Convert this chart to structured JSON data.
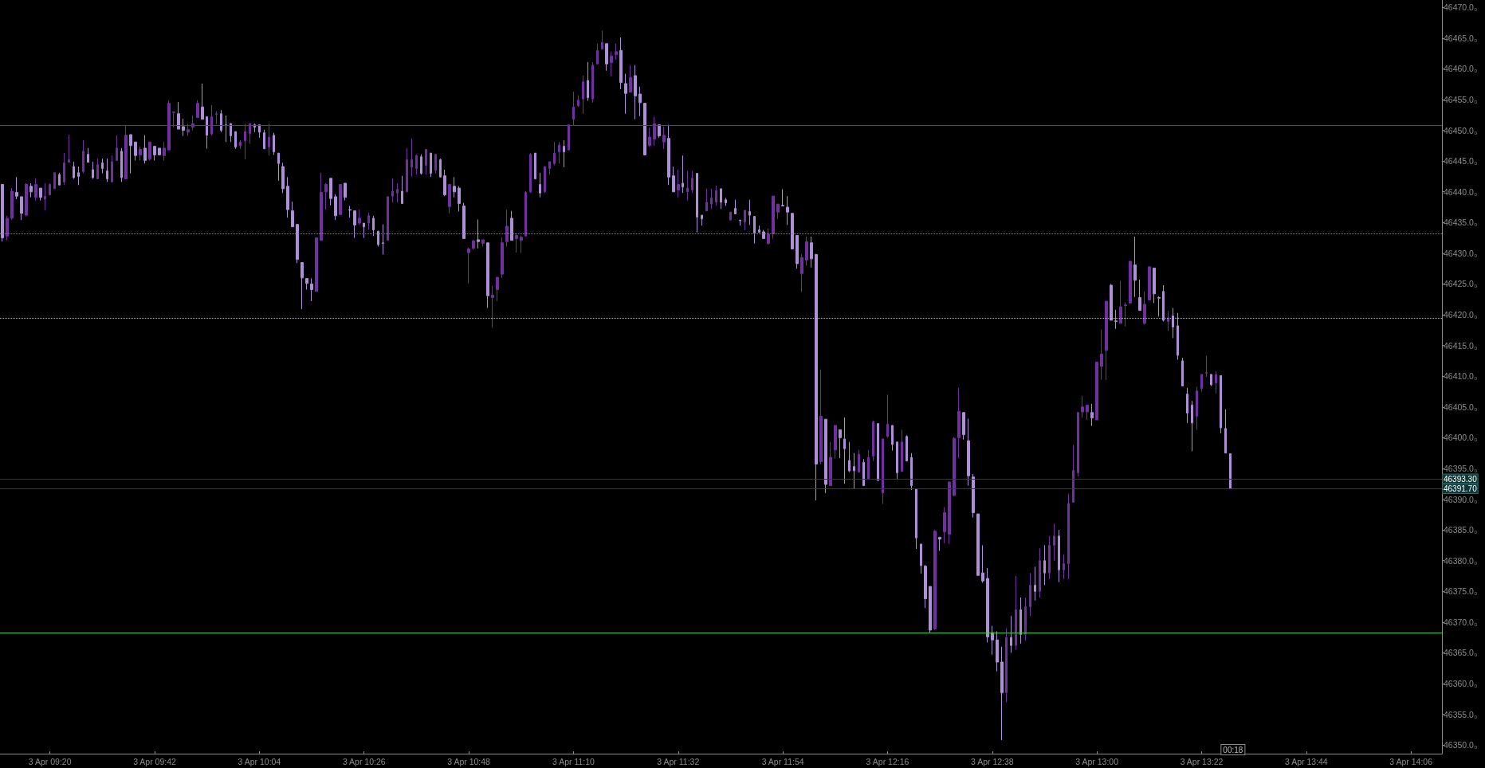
{
  "chart_data": {
    "type": "candlestick",
    "categories": [
      null,
      null,
      null,
      null,
      null,
      null,
      null,
      null,
      null,
      null,
      "3 Apr 09:20",
      null,
      null,
      null,
      null,
      null,
      null,
      null,
      null,
      null,
      null,
      null,
      null,
      null,
      null,
      null,
      null,
      null,
      null,
      null,
      null,
      null,
      "3 Apr 09:42",
      null,
      null,
      null,
      null,
      null,
      null,
      null,
      null,
      null,
      null,
      null,
      null,
      null,
      null,
      null,
      null,
      null,
      null,
      null,
      null,
      null,
      "3 Apr 10:04",
      null,
      null,
      null,
      null,
      null,
      null,
      null,
      null,
      null,
      null,
      null,
      null,
      null,
      null,
      null,
      null,
      null,
      null,
      null,
      null,
      null,
      "3 Apr 10:26",
      null,
      null,
      null,
      null,
      null,
      null,
      null,
      null,
      null,
      null,
      null,
      null,
      null,
      null,
      null,
      null,
      null,
      null,
      null,
      null,
      null,
      "3 Apr 10:48",
      null,
      null,
      null,
      null,
      null,
      null,
      null,
      null,
      null,
      null,
      null,
      null,
      null,
      null,
      null,
      null,
      null,
      null,
      null,
      null,
      null,
      "3 Apr 11:10",
      null,
      null,
      null,
      null,
      null,
      null,
      null,
      null,
      null,
      null,
      null,
      null,
      null,
      null,
      null,
      null,
      null,
      null,
      null,
      null,
      null,
      "3 Apr 11:32",
      null,
      null,
      null,
      null,
      null,
      null,
      null,
      null,
      null,
      null,
      null,
      null,
      null,
      null,
      null,
      null,
      null,
      null,
      null,
      null,
      null,
      "3 Apr 11:54",
      null,
      null,
      null,
      null,
      null,
      null,
      null,
      null,
      null,
      null,
      null,
      null,
      null,
      null,
      null,
      null,
      null,
      null,
      null,
      null,
      null,
      "3 Apr 12:16",
      null,
      null,
      null,
      null,
      null,
      null,
      null,
      null,
      null,
      null,
      null,
      null,
      null,
      null,
      null,
      null,
      null,
      null,
      null,
      null,
      null,
      "3 Apr 12:38",
      null,
      null,
      null,
      null,
      null,
      null,
      null,
      null,
      null,
      null,
      null,
      null,
      null,
      null,
      null,
      null,
      null,
      null,
      null,
      null,
      null,
      "3 Apr 13:00",
      null,
      null,
      null,
      null,
      null,
      null,
      null,
      null,
      null,
      null,
      null,
      null,
      null,
      null,
      null,
      null,
      null,
      null,
      null,
      null,
      null,
      "3 Apr 13:22",
      null,
      null,
      null,
      null,
      null,
      null,
      null,
      null,
      null,
      null,
      null,
      null,
      null,
      null,
      null,
      null,
      null,
      null,
      null,
      null,
      null,
      "3 Apr 13:44",
      null,
      null,
      null,
      null,
      null,
      null,
      null,
      null,
      null,
      null,
      null,
      null,
      null,
      null,
      null,
      null,
      null,
      null,
      null,
      null,
      null,
      "3 Apr 14:06",
      null,
      null,
      null,
      null,
      null,
      null
    ],
    "ohlc": [
      [
        46441.2,
        46441.2,
        46431.9,
        46432.5
      ],
      [
        46432.8,
        46436.1,
        46432.1,
        46435.7
      ],
      [
        46435.7,
        46440.6,
        46435.4,
        46440.1
      ],
      [
        46439.9,
        46442.4,
        46438.8,
        46439.3
      ],
      [
        46439.2,
        46439.2,
        46435.4,
        46436.5
      ],
      [
        46436.2,
        46441.4,
        46436.0,
        46441.2
      ],
      [
        46440.9,
        46441.4,
        46439.1,
        46440.0
      ],
      [
        46439.1,
        46442.2,
        46438.6,
        46441.2
      ],
      [
        46440.6,
        46440.6,
        46438.6,
        46439.1
      ],
      [
        46438.8,
        46441.4,
        46437.0,
        46439.3
      ],
      [
        46439.5,
        46441.4,
        46439.5,
        46441.2
      ],
      [
        46440.5,
        46443.1,
        46440.5,
        46443.1
      ],
      [
        46442.8,
        46443.1,
        46441.1,
        46441.1
      ],
      [
        46441.6,
        46446.3,
        46441.1,
        46444.7
      ],
      [
        46444.8,
        46449.3,
        46444.8,
        46445.2
      ],
      [
        46444.1,
        46444.9,
        46442.1,
        46442.3
      ],
      [
        46443.1,
        46444.1,
        46441.1,
        46442.5
      ],
      [
        46443.3,
        46448.4,
        46443.0,
        46446.6
      ],
      [
        46446.1,
        46447.1,
        46444.8,
        46444.8
      ],
      [
        46443.6,
        46444.9,
        46442.1,
        46442.3
      ],
      [
        46442.1,
        46445.4,
        46442.1,
        46444.4
      ],
      [
        46444.7,
        46445.4,
        46443.0,
        46443.8
      ],
      [
        46443.4,
        46445.4,
        46441.6,
        46442.1
      ],
      [
        46441.6,
        46445.9,
        46441.6,
        46444.9
      ],
      [
        46445.1,
        46449.2,
        46445.1,
        46447.1
      ],
      [
        46446.6,
        46447.1,
        46441.6,
        46442.3
      ],
      [
        46442.1,
        46450.9,
        46442.1,
        46449.2
      ],
      [
        46449.3,
        46449.3,
        46443.0,
        46447.5
      ],
      [
        46448.1,
        46448.1,
        46445.1,
        46445.9
      ],
      [
        46446.0,
        46447.4,
        46445.1,
        46446.9
      ],
      [
        46447.1,
        46449.2,
        46444.6,
        46445.1
      ],
      [
        46445.3,
        46448.1,
        46445.1,
        46448.1
      ],
      [
        46447.4,
        46447.4,
        46445.1,
        46446.0
      ],
      [
        46447.1,
        46447.1,
        46446.0,
        46446.0
      ],
      [
        46445.9,
        46448.1,
        46445.1,
        46447.1
      ],
      [
        46446.8,
        46454.9,
        46446.8,
        46454.4
      ],
      [
        46452.9,
        46453.0,
        46450.5,
        46453.0
      ],
      [
        46452.7,
        46454.6,
        46450.2,
        46450.2
      ],
      [
        46450.6,
        46451.9,
        46449.1,
        46450.0
      ],
      [
        46449.7,
        46451.1,
        46449.1,
        46450.1
      ],
      [
        46450.5,
        46452.4,
        46450.0,
        46451.1
      ],
      [
        46452.1,
        46454.9,
        46452.1,
        46454.4
      ],
      [
        46453.8,
        46457.6,
        46451.8,
        46451.8
      ],
      [
        46452.2,
        46452.2,
        46447.0,
        46449.2
      ],
      [
        46449.4,
        46454.1,
        46449.2,
        46452.2
      ],
      [
        46452.6,
        46453.1,
        46451.0,
        46452.7
      ],
      [
        46452.7,
        46453.3,
        46449.7,
        46450.0
      ],
      [
        46450.9,
        46452.4,
        46448.1,
        46450.8
      ],
      [
        46451.1,
        46451.1,
        46448.1,
        46449.1
      ],
      [
        46449.8,
        46449.8,
        46447.0,
        46447.3
      ],
      [
        46447.5,
        46448.4,
        46447.0,
        46448.1
      ],
      [
        46448.3,
        46451.1,
        46445.3,
        46449.8
      ],
      [
        46449.5,
        46451.1,
        46447.8,
        46451.1
      ],
      [
        46450.9,
        46451.1,
        46449.7,
        46450.5
      ],
      [
        46450.9,
        46450.9,
        46448.8,
        46449.7
      ],
      [
        46449.6,
        46450.1,
        46447.0,
        46447.0
      ],
      [
        46447.3,
        46451.1,
        46445.9,
        46448.9
      ],
      [
        46449.2,
        46449.6,
        46446.0,
        46446.5
      ],
      [
        46446.3,
        46446.3,
        46441.8,
        46444.6
      ],
      [
        46444.1,
        46444.7,
        46439.8,
        46440.5
      ],
      [
        46440.9,
        46442.4,
        46435.8,
        46437.1
      ],
      [
        46436.9,
        46438.4,
        46434.3,
        46434.3
      ],
      [
        46434.7,
        46434.7,
        46428.4,
        46429.0
      ],
      [
        46428.5,
        46428.5,
        46420.9,
        46426.0
      ],
      [
        46425.9,
        46425.9,
        46424.1,
        46425.1
      ],
      [
        46425.0,
        46425.9,
        46422.2,
        46424.1
      ],
      [
        46423.8,
        46432.6,
        46423.8,
        46432.5
      ],
      [
        46432.1,
        46443.1,
        46432.1,
        46439.9
      ],
      [
        46440.0,
        46441.4,
        46437.1,
        46441.2
      ],
      [
        46442.2,
        46442.2,
        46437.8,
        46438.9
      ],
      [
        46439.2,
        46439.6,
        46435.4,
        46436.1
      ],
      [
        46436.3,
        46441.2,
        46436.3,
        46441.2
      ],
      [
        46441.4,
        46441.4,
        46438.6,
        46439.1
      ],
      [
        46437.1,
        46437.7,
        46435.8,
        46437.0
      ],
      [
        46436.9,
        46436.9,
        46432.5,
        46434.6
      ],
      [
        46434.9,
        46437.1,
        46434.6,
        46435.7
      ],
      [
        46434.9,
        46434.9,
        46432.5,
        46434.3
      ],
      [
        46434.9,
        46436.6,
        46433.8,
        46436.1
      ],
      [
        46435.7,
        46436.1,
        46432.8,
        46433.8
      ],
      [
        46433.6,
        46433.6,
        46431.1,
        46431.4
      ],
      [
        46431.7,
        46434.7,
        46429.8,
        46431.6
      ],
      [
        46432.1,
        46439.2,
        46432.1,
        46439.2
      ],
      [
        46439.3,
        46442.2,
        46438.3,
        46440.1
      ],
      [
        46439.8,
        46441.4,
        46438.3,
        46440.4
      ],
      [
        46440.1,
        46442.6,
        46438.1,
        46438.1
      ],
      [
        46440.0,
        46447.1,
        46440.0,
        46445.2
      ],
      [
        46444.0,
        46448.7,
        46442.5,
        46445.2
      ],
      [
        46443.8,
        46446.1,
        46442.8,
        46445.9
      ],
      [
        46445.7,
        46446.1,
        46442.8,
        46443.0
      ],
      [
        46444.3,
        46446.9,
        46442.8,
        46446.9
      ],
      [
        46446.3,
        46446.3,
        46442.4,
        46443.0
      ],
      [
        46443.5,
        46446.1,
        46443.0,
        46446.1
      ],
      [
        46445.2,
        46445.4,
        46442.4,
        46442.4
      ],
      [
        46442.6,
        46443.6,
        46439.3,
        46439.5
      ],
      [
        46437.6,
        46441.2,
        46436.5,
        46441.2
      ],
      [
        46440.9,
        46442.4,
        46439.1,
        46440.0
      ],
      [
        46440.6,
        46440.9,
        46436.8,
        46438.1
      ],
      [
        46437.7,
        46438.2,
        46432.4,
        46432.4
      ],
      [
        46430.1,
        46430.9,
        46425.1,
        46430.7
      ],
      [
        46430.8,
        46432.2,
        46430.6,
        46432.0
      ],
      [
        46432.2,
        46435.5,
        46430.8,
        46431.9
      ],
      [
        46431.6,
        46432.2,
        46431.1,
        46432.2
      ],
      [
        46431.7,
        46431.7,
        46421.1,
        46423.1
      ],
      [
        46422.8,
        46424.7,
        46417.9,
        46423.2
      ],
      [
        46424.1,
        46426.1,
        46422.2,
        46426.1
      ],
      [
        46426.6,
        46432.6,
        46426.0,
        46431.7
      ],
      [
        46431.9,
        46437.1,
        46431.1,
        46434.4
      ],
      [
        46435.7,
        46436.9,
        46432.1,
        46432.1
      ],
      [
        46432.4,
        46433.2,
        46430.1,
        46432.9
      ],
      [
        46432.1,
        46432.9,
        46430.1,
        46432.6
      ],
      [
        46432.8,
        46440.1,
        46432.8,
        46439.9
      ],
      [
        46440.0,
        46446.3,
        46439.8,
        46446.1
      ],
      [
        46446.3,
        46446.3,
        46442.1,
        46442.1
      ],
      [
        46441.2,
        46443.1,
        46439.1,
        46439.8
      ],
      [
        46440.0,
        46444.1,
        46439.8,
        46444.1
      ],
      [
        46443.8,
        46444.9,
        46442.8,
        46444.9
      ],
      [
        46444.6,
        46448.1,
        46444.3,
        46446.3
      ],
      [
        46446.5,
        46448.1,
        46444.6,
        46447.6
      ],
      [
        46447.4,
        46448.4,
        46444.0,
        46446.5
      ],
      [
        46446.8,
        46450.9,
        46446.8,
        46450.9
      ],
      [
        46451.8,
        46456.3,
        46450.8,
        46453.8
      ],
      [
        46454.0,
        46455.7,
        46453.8,
        46454.9
      ],
      [
        46455.1,
        46458.9,
        46452.7,
        46457.9
      ],
      [
        46458.1,
        46461.1,
        46454.8,
        46455.3
      ],
      [
        46455.1,
        46461.1,
        46454.5,
        46460.6
      ],
      [
        46460.8,
        46464.1,
        46460.8,
        46463.0
      ],
      [
        46463.2,
        46466.2,
        46463.2,
        46464.3
      ],
      [
        46464.1,
        46464.1,
        46459.7,
        46460.8
      ],
      [
        46461.0,
        46462.8,
        46458.8,
        46462.1
      ],
      [
        46462.3,
        46464.1,
        46461.5,
        46462.8
      ],
      [
        46463.0,
        46465.1,
        46456.7,
        46457.8
      ],
      [
        46457.6,
        46459.2,
        46452.7,
        46456.0
      ],
      [
        46456.2,
        46460.6,
        46456.2,
        46458.6
      ],
      [
        46458.9,
        46460.6,
        46451.8,
        46455.6
      ],
      [
        46455.9,
        46457.1,
        46452.3,
        46454.5
      ],
      [
        46454.4,
        46454.4,
        46445.9,
        46446.0
      ],
      [
        46447.5,
        46450.4,
        46447.3,
        46448.9
      ],
      [
        46448.6,
        46452.2,
        46447.5,
        46451.1
      ],
      [
        46450.9,
        46450.9,
        46448.8,
        46449.1
      ],
      [
        46448.1,
        46450.6,
        46447.0,
        46449.2
      ],
      [
        46448.7,
        46450.9,
        46441.1,
        46442.4
      ],
      [
        46442.6,
        46444.1,
        46440.0,
        46440.0
      ],
      [
        46440.3,
        46443.6,
        46439.1,
        46441.2
      ],
      [
        46441.4,
        46445.9,
        46439.8,
        46440.8
      ],
      [
        46440.0,
        46443.4,
        46438.6,
        46440.6
      ],
      [
        46440.3,
        46443.4,
        46439.8,
        46442.2
      ],
      [
        46443.0,
        46443.0,
        46433.4,
        46435.9
      ],
      [
        46436.2,
        46436.2,
        46434.5,
        46435.6
      ],
      [
        46436.9,
        46440.5,
        46436.9,
        46438.3
      ],
      [
        46438.0,
        46440.5,
        46437.2,
        46439.0
      ],
      [
        46438.3,
        46441.0,
        46437.7,
        46440.2
      ],
      [
        46440.5,
        46440.5,
        46437.2,
        46438.3
      ],
      [
        46438.7,
        46439.0,
        46437.7,
        46438.2
      ],
      [
        46435.4,
        46436.7,
        46435.4,
        46436.7
      ],
      [
        46437.3,
        46438.7,
        46436.4,
        46436.4
      ],
      [
        46435.4,
        46435.4,
        46434.5,
        46435.3
      ],
      [
        46435.1,
        46437.0,
        46433.7,
        46437.0
      ],
      [
        46436.8,
        46438.7,
        46434.6,
        46436.2
      ],
      [
        46436.0,
        46436.0,
        46431.6,
        46433.3
      ],
      [
        46433.8,
        46434.5,
        46433.4,
        46433.4
      ],
      [
        46433.5,
        46433.8,
        46432.4,
        46432.4
      ],
      [
        46431.6,
        46434.0,
        46431.4,
        46433.1
      ],
      [
        46433.2,
        46439.3,
        46432.4,
        46439.3
      ],
      [
        46436.7,
        46438.0,
        46435.6,
        46438.0
      ],
      [
        46437.8,
        46440.4,
        46437.7,
        46437.7
      ],
      [
        46437.5,
        46439.3,
        46434.6,
        46436.7
      ],
      [
        46436.5,
        46436.5,
        46430.7,
        46430.7
      ],
      [
        46432.9,
        46432.9,
        46427.5,
        46428.3
      ],
      [
        46426.7,
        46429.9,
        46423.7,
        46429.3
      ],
      [
        46428.9,
        46432.7,
        46428.0,
        46431.9
      ],
      [
        46431.7,
        46432.7,
        46427.7,
        46429.1
      ],
      [
        46429.8,
        46429.9,
        46389.8,
        46395.7
      ],
      [
        46396.1,
        46411.1,
        46395.7,
        46403.5
      ],
      [
        46403.0,
        46403.0,
        46391.0,
        46392.4
      ],
      [
        46392.2,
        46399.3,
        46392.2,
        46396.8
      ],
      [
        46398.0,
        46402.0,
        46396.6,
        46402.0
      ],
      [
        46401.3,
        46401.3,
        46396.7,
        46400.0
      ],
      [
        46399.8,
        46403.3,
        46392.5,
        46398.2
      ],
      [
        46396.3,
        46399.3,
        46394.4,
        46394.6
      ],
      [
        46395.3,
        46397.5,
        46391.7,
        46394.6
      ],
      [
        46394.4,
        46398.0,
        46394.3,
        46397.3
      ],
      [
        46396.0,
        46396.5,
        46392.2,
        46392.2
      ],
      [
        46393.3,
        46398.0,
        46393.3,
        46396.8
      ],
      [
        46397.0,
        46402.8,
        46396.2,
        46402.6
      ],
      [
        46402.3,
        46402.3,
        46392.9,
        46393.1
      ],
      [
        46391.0,
        46399.8,
        46389.2,
        46399.8
      ],
      [
        46400.2,
        46407.0,
        46400.0,
        46402.2
      ],
      [
        46402.0,
        46402.0,
        46397.9,
        46398.9
      ],
      [
        46399.3,
        46399.3,
        46393.2,
        46394.3
      ],
      [
        46394.5,
        46401.3,
        46394.5,
        46399.3
      ],
      [
        46400.2,
        46400.4,
        46396.2,
        46396.2
      ],
      [
        46396.8,
        46397.5,
        46391.5,
        46392.2
      ],
      [
        46391.7,
        46391.7,
        46381.9,
        46383.7
      ],
      [
        46382.7,
        46382.7,
        46377.9,
        46379.2
      ],
      [
        46379.1,
        46379.3,
        46372.3,
        46373.8
      ],
      [
        46375.8,
        46375.8,
        46368.3,
        46368.7
      ],
      [
        46368.9,
        46385.0,
        46368.7,
        46384.8
      ],
      [
        46383.8,
        46383.8,
        46381.6,
        46383.5
      ],
      [
        46384.7,
        46388.7,
        46382.8,
        46387.8
      ],
      [
        46384.3,
        46392.8,
        46382.7,
        46392.8
      ],
      [
        46390.6,
        46400.1,
        46390.5,
        46399.9
      ],
      [
        46400.0,
        46408.1,
        46396.7,
        46404.3
      ],
      [
        46404.1,
        46404.1,
        46399.7,
        46400.5
      ],
      [
        46399.5,
        46403.1,
        46392.2,
        46393.8
      ],
      [
        46393.6,
        46394.1,
        46387.0,
        46387.8
      ],
      [
        46387.6,
        46387.6,
        46377.5,
        46377.6
      ],
      [
        46378.0,
        46382.5,
        46376.4,
        46376.7
      ],
      [
        46377.1,
        46378.8,
        46366.7,
        46367.6
      ],
      [
        46368.3,
        46369.4,
        46364.7,
        46367.1
      ],
      [
        46367.1,
        46368.5,
        46362.0,
        46363.5
      ],
      [
        46363.5,
        46366.0,
        46350.8,
        46358.5
      ],
      [
        46358.5,
        46369.0,
        46357.0,
        46367.5
      ],
      [
        46367.5,
        46371.0,
        46365.0,
        46366.2
      ],
      [
        46366.2,
        46377.5,
        46365.5,
        46372.0
      ],
      [
        46372.0,
        46374.0,
        46366.5,
        46368.0
      ],
      [
        46368.0,
        46374.0,
        46367.0,
        46372.5
      ],
      [
        46372.5,
        46378.0,
        46371.0,
        46376.0
      ],
      [
        46376.0,
        46379.0,
        46373.5,
        46375.0
      ],
      [
        46375.0,
        46382.0,
        46374.0,
        46380.0
      ],
      [
        46380.0,
        46382.5,
        46376.0,
        46378.0
      ],
      [
        46378.0,
        46384.0,
        46377.0,
        46382.5
      ],
      [
        46382.5,
        46386.0,
        46380.0,
        46384.0
      ],
      [
        46384.0,
        46385.0,
        46376.5,
        46378.5
      ],
      [
        46378.5,
        46381.0,
        46377.0,
        46379.5
      ],
      [
        46379.5,
        46390.9,
        46377.0,
        46389.3
      ],
      [
        46389.5,
        46398.8,
        46389.5,
        46394.7
      ],
      [
        46394.3,
        46404.1,
        46393.7,
        46404.1
      ],
      [
        46404.2,
        46406.8,
        46403.2,
        46405.0
      ],
      [
        46404.2,
        46405.3,
        46402.9,
        46405.3
      ],
      [
        46404.1,
        46405.5,
        46401.9,
        46403.2
      ],
      [
        46402.9,
        46412.3,
        46402.9,
        46412.3
      ],
      [
        46411.6,
        46417.6,
        46409.4,
        46413.6
      ],
      [
        46414.2,
        46422.2,
        46409.4,
        46422.2
      ],
      [
        46424.8,
        46425.0,
        46419.1,
        46419.1
      ],
      [
        46419.0,
        46420.8,
        46417.7,
        46418.9
      ],
      [
        46418.6,
        46425.5,
        46418.6,
        46421.3
      ],
      [
        46421.5,
        46422.0,
        46418.1,
        46421.6
      ],
      [
        46421.9,
        46428.7,
        46421.9,
        46428.7
      ],
      [
        46428.1,
        46432.7,
        46422.9,
        46425.6
      ],
      [
        46422.8,
        46425.7,
        46420.7,
        46420.7
      ],
      [
        46418.6,
        46423.8,
        46418.4,
        46421.7
      ],
      [
        46422.4,
        46427.8,
        46422.4,
        46427.8
      ],
      [
        46427.6,
        46427.6,
        46421.9,
        46423.4
      ],
      [
        46422.8,
        46423.0,
        46419.7,
        46422.7
      ],
      [
        46423.8,
        46424.8,
        46418.9,
        46419.1
      ],
      [
        46418.9,
        46420.6,
        46417.4,
        46419.5
      ],
      [
        46419.8,
        46421.1,
        46416.2,
        46418.0
      ],
      [
        46418.2,
        46420.3,
        46412.7,
        46413.4
      ],
      [
        46412.5,
        46413.0,
        46408.4,
        46408.4
      ],
      [
        46407.1,
        46408.1,
        46402.4,
        46404.0
      ],
      [
        46405.3,
        46406.0,
        46397.8,
        46402.4
      ],
      [
        46403.5,
        46408.3,
        46401.3,
        46407.6
      ],
      [
        46408.0,
        46410.3,
        46407.5,
        46410.3
      ],
      [
        46410.5,
        46413.3,
        46409.9,
        46410.6
      ],
      [
        46410.3,
        46410.3,
        46408.4,
        46408.6
      ],
      [
        46408.9,
        46410.8,
        46407.2,
        46410.3
      ],
      [
        46410.1,
        46410.1,
        46400.7,
        46401.6
      ],
      [
        46401.5,
        46404.6,
        46397.5,
        46397.5
      ],
      [
        46397.4,
        46397.4,
        46391.7,
        46391.7
      ],
      null,
      null,
      null,
      null,
      null,
      null,
      null,
      null,
      null,
      null,
      null,
      null,
      null,
      null,
      null,
      null,
      null,
      null,
      null,
      null,
      null,
      null,
      null,
      null,
      null,
      null,
      null,
      null,
      null,
      null,
      null,
      null,
      null,
      null,
      null,
      null,
      null,
      null,
      null,
      null,
      null,
      null,
      null,
      null
    ],
    "colors": [
      "#b08fd9",
      "#7030a0",
      "#7030a0",
      "#b08fd9",
      "#b08fd9",
      "#7030a0",
      "#b08fd9",
      "#7030a0",
      "#b08fd9",
      "#7030a0",
      "#7030a0",
      "#7030a0",
      "#b08fd9",
      "#7030a0",
      "#7030a0",
      "#b08fd9",
      "#b08fd9",
      "#7030a0",
      "#b08fd9",
      "#b08fd9",
      "#7030a0",
      "#b08fd9",
      "#b08fd9",
      "#7030a0",
      "#7030a0",
      "#b08fd9",
      "#7030a0",
      "#b08fd9",
      "#b08fd9",
      "#7030a0",
      "#b08fd9",
      "#7030a0",
      "#b08fd9",
      "#b08fd9",
      "#7030a0",
      "#7030a0",
      "#7030a0",
      "#b08fd9",
      "#b08fd9",
      "#7030a0",
      "#7030a0",
      "#7030a0",
      "#b08fd9",
      "#b08fd9",
      "#7030a0",
      "#7030a0",
      "#b08fd9",
      "#b08fd9",
      "#b08fd9",
      "#b08fd9",
      "#7030a0",
      "#7030a0",
      "#7030a0",
      "#b08fd9",
      "#b08fd9",
      "#b08fd9",
      "#7030a0",
      "#b08fd9",
      "#b08fd9",
      "#b08fd9",
      "#b08fd9",
      "#b08fd9",
      "#b08fd9",
      "#b08fd9",
      "#b08fd9",
      "#b08fd9",
      "#7030a0",
      "#7030a0",
      "#7030a0",
      "#b08fd9",
      "#b08fd9",
      "#7030a0",
      "#b08fd9",
      "#b08fd9",
      "#b08fd9",
      "#7030a0",
      "#b08fd9",
      "#7030a0",
      "#b08fd9",
      "#b08fd9",
      "#b08fd9",
      "#7030a0",
      "#7030a0",
      "#7030a0",
      "#b08fd9",
      "#7030a0",
      "#7030a0",
      "#7030a0",
      "#b08fd9",
      "#7030a0",
      "#b08fd9",
      "#7030a0",
      "#b08fd9",
      "#b08fd9",
      "#7030a0",
      "#b08fd9",
      "#b08fd9",
      "#b08fd9",
      "#7030a0",
      "#7030a0",
      "#b08fd9",
      "#7030a0",
      "#b08fd9",
      "#7030a0",
      "#7030a0",
      "#7030a0",
      "#7030a0",
      "#b08fd9",
      "#7030a0",
      "#7030a0",
      "#7030a0",
      "#7030a0",
      "#b08fd9",
      "#b08fd9",
      "#7030a0",
      "#7030a0",
      "#7030a0",
      "#7030a0",
      "#b08fd9",
      "#7030a0",
      "#7030a0",
      "#7030a0",
      "#7030a0",
      "#b08fd9",
      "#7030a0",
      "#7030a0",
      "#7030a0",
      "#b08fd9",
      "#7030a0",
      "#7030a0",
      "#b08fd9",
      "#b08fd9",
      "#7030a0",
      "#b08fd9",
      "#b08fd9",
      "#b08fd9",
      "#7030a0",
      "#7030a0",
      "#b08fd9",
      "#7030a0",
      "#b08fd9",
      "#b08fd9",
      "#7030a0",
      "#b08fd9",
      "#7030a0",
      "#7030a0",
      "#b08fd9",
      "#b08fd9",
      "#7030a0",
      "#7030a0",
      "#7030a0",
      "#b08fd9",
      "#b08fd9",
      "#7030a0",
      "#b08fd9",
      "#b08fd9",
      "#7030a0",
      "#b08fd9",
      "#b08fd9",
      "#b08fd9",
      "#b08fd9",
      "#7030a0",
      "#7030a0",
      "#7030a0",
      "#b08fd9",
      "#b08fd9",
      "#b08fd9",
      "#b08fd9",
      "#7030a0",
      "#7030a0",
      "#b08fd9",
      "#b08fd9",
      "#7030a0",
      "#b08fd9",
      "#7030a0",
      "#7030a0",
      "#b08fd9",
      "#b08fd9",
      "#b08fd9",
      "#b08fd9",
      "#7030a0",
      "#b08fd9",
      "#7030a0",
      "#7030a0",
      "#b08fd9",
      "#7030a0",
      "#7030a0",
      "#b08fd9",
      "#b08fd9",
      "#7030a0",
      "#b08fd9",
      "#b08fd9",
      "#b08fd9",
      "#b08fd9",
      "#b08fd9",
      "#b08fd9",
      "#7030a0",
      "#b08fd9",
      "#7030a0",
      "#7030a0",
      "#7030a0",
      "#7030a0",
      "#b08fd9",
      "#b08fd9",
      "#b08fd9",
      "#b08fd9",
      "#b08fd9",
      "#b08fd9",
      "#b08fd9",
      "#b08fd9",
      "#b08fd9",
      "#7030a0",
      "#b08fd9",
      "#7030a0",
      "#b08fd9",
      "#7030a0",
      "#7030a0",
      "#b08fd9",
      "#7030a0",
      "#b08fd9",
      "#7030a0",
      "#7030a0",
      "#b08fd9",
      "#7030a0",
      "#7030a0",
      "#7030a0",
      "#7030a0",
      "#7030a0",
      "#7030a0",
      "#b08fd9",
      "#7030a0",
      "#7030a0",
      "#7030a0",
      "#b08fd9",
      "#b08fd9",
      "#7030a0",
      "#7030a0",
      "#7030a0",
      "#b08fd9",
      "#b08fd9",
      "#7030a0",
      "#7030a0",
      "#b08fd9",
      "#b08fd9",
      "#b08fd9",
      "#7030a0",
      "#b08fd9",
      "#b08fd9",
      "#b08fd9",
      "#b08fd9",
      "#b08fd9",
      "#7030a0",
      "#7030a0",
      "#7030a0",
      "#b08fd9",
      "#7030a0",
      "#b08fd9",
      "#b08fd9",
      "#b08fd9",
      null,
      null,
      null,
      null,
      null,
      null,
      null,
      null,
      null,
      null,
      null,
      null,
      null,
      null,
      null,
      null,
      null,
      null,
      null,
      null,
      null,
      null,
      null,
      null,
      null,
      null,
      null,
      null,
      null,
      null,
      null,
      null,
      null,
      null,
      null,
      null,
      null,
      null,
      null,
      null,
      null,
      null,
      null,
      null
    ],
    "ylim": [
      46348.6,
      46471.2
    ],
    "yticks": [
      {
        "value": 46350,
        "label": "46350.0₀"
      },
      {
        "value": 46355,
        "label": "46355.0₀"
      },
      {
        "value": 46360,
        "label": "46360.0₀"
      },
      {
        "value": 46365,
        "label": "46365.0₀"
      },
      {
        "value": 46370,
        "label": "46370.0₀"
      },
      {
        "value": 46375,
        "label": "46375.0₀"
      },
      {
        "value": 46380,
        "label": "46380.0₀"
      },
      {
        "value": 46385,
        "label": "46385.0₀"
      },
      {
        "value": 46390,
        "label": "46390.0₀"
      },
      {
        "value": 46395,
        "label": "46395.0₀"
      },
      {
        "value": 46400,
        "label": "46400.0₀"
      },
      {
        "value": 46405,
        "label": "46405.0₀"
      },
      {
        "value": 46410,
        "label": "46410.0₀"
      },
      {
        "value": 46415,
        "label": "46415.0₀"
      },
      {
        "value": 46420,
        "label": "46420.0₀"
      },
      {
        "value": 46425,
        "label": "46425.0₀"
      },
      {
        "value": 46430,
        "label": "46430.0₀"
      },
      {
        "value": 46435,
        "label": "46435.0₀"
      },
      {
        "value": 46440,
        "label": "46440.0₀"
      },
      {
        "value": 46445,
        "label": "46445.0₀"
      },
      {
        "value": 46450,
        "label": "46450.0₀"
      },
      {
        "value": 46455,
        "label": "46455.0₀"
      },
      {
        "value": 46460,
        "label": "46460.0₀"
      },
      {
        "value": 46465,
        "label": "46465.0₀"
      },
      {
        "value": 46470,
        "label": "46470.0₀"
      }
    ],
    "ref_lines": [
      {
        "axis": "y",
        "value": 46450.8,
        "color": "#ff0000",
        "line_style": "solid"
      },
      {
        "axis": "y",
        "value": 46433.2,
        "color": "#8a6fe0",
        "line_style": "dotted"
      },
      {
        "axis": "y",
        "value": 46419.4,
        "color": "#ffc000",
        "line_style": "dotted"
      },
      {
        "axis": "y",
        "value": 46368.3,
        "color": "#32cd32",
        "line_style": "solid"
      },
      {
        "axis": "y",
        "value": 46393.3,
        "label": "46393.30",
        "color": "#1d4545",
        "line_style": "solid"
      },
      {
        "axis": "y",
        "value": 46391.7,
        "label": "46391.70",
        "color": "#1d4545",
        "line_style": "solid"
      }
    ],
    "annotations": [
      "00:18"
    ]
  }
}
